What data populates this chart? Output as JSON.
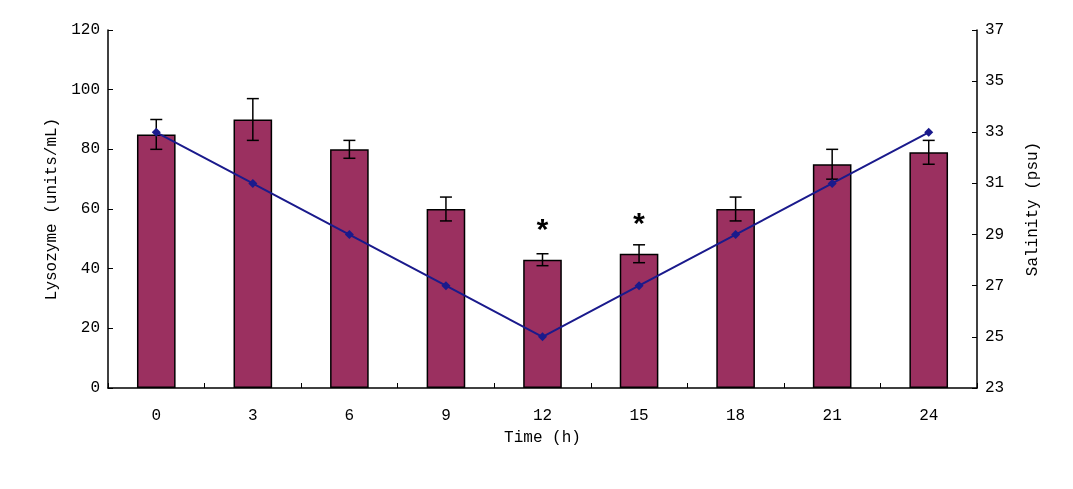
{
  "chart_data": {
    "type": "bar",
    "xlabel": "Time (h)",
    "ylabel": "Lysozyme (units/mL)",
    "y2label": "Salinity (psu)",
    "categories": [
      "0",
      "3",
      "6",
      "9",
      "12",
      "15",
      "18",
      "21",
      "24"
    ],
    "series": [
      {
        "color": "#9b3060",
        "values": [
          85,
          90,
          80,
          60,
          43,
          45,
          60,
          75,
          79
        ],
        "errors": [
          5,
          7,
          3,
          4,
          2,
          3,
          4,
          5,
          4
        ]
      },
      {
        "type": "line",
        "axis": "y2",
        "color": "#1a1a8c",
        "marker": "diamond",
        "values": [
          33,
          31,
          29,
          27,
          25,
          27,
          29,
          31,
          33
        ]
      }
    ],
    "ylim": [
      0,
      120
    ],
    "yticks": [
      0,
      20,
      40,
      60,
      80,
      100,
      120
    ],
    "y2lim": [
      23,
      37
    ],
    "y2ticks": [
      23,
      25,
      27,
      29,
      31,
      33,
      35,
      37
    ],
    "annotations": [
      {
        "text": "*",
        "x": "12",
        "y": 43
      },
      {
        "text": "*",
        "x": "15",
        "y": 45
      }
    ],
    "grid": false
  }
}
